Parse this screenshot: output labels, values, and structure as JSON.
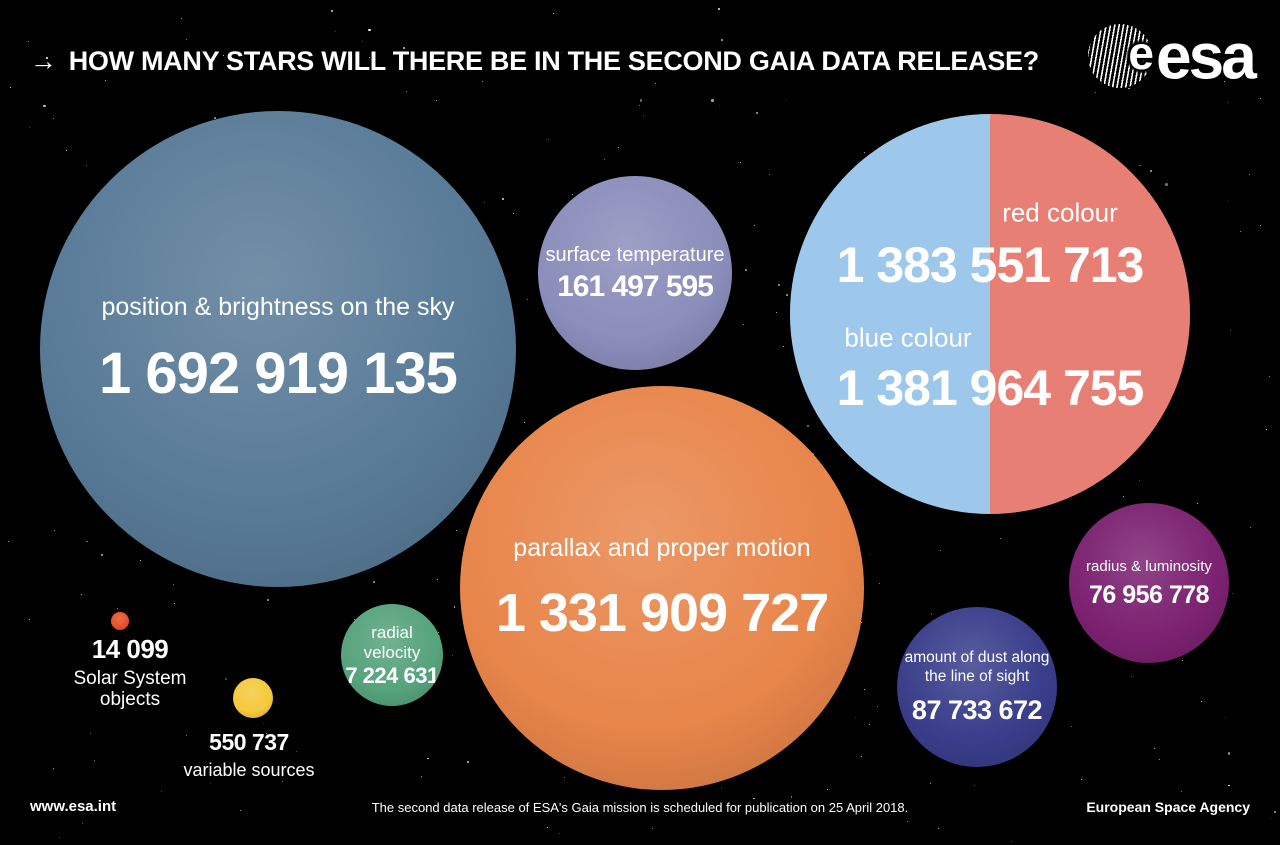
{
  "header": {
    "arrow": "→",
    "title": "HOW MANY STARS WILL THERE BE IN THE SECOND GAIA DATA RELEASE?"
  },
  "logo": {
    "globe_letter": "e",
    "wordmark": "esa"
  },
  "bubbles": {
    "position_brightness": {
      "label": "position & brightness on the sky",
      "value": "1 692 919 135",
      "color": "#587a97"
    },
    "surface_temperature": {
      "label": "surface temperature",
      "value": "161 497 595",
      "color": "#8b8dbb"
    },
    "colour": {
      "red_label": "red colour",
      "red_value": "1 383 551 713",
      "red_color": "#e87f75",
      "blue_label": "blue colour",
      "blue_value": "1 381 964 755",
      "blue_color": "#9dc8eb"
    },
    "parallax": {
      "label": "parallax and proper motion",
      "value": "1 331 909 727",
      "color": "#e8854a"
    },
    "radial_velocity": {
      "label": "radial velocity",
      "value": "7 224 631",
      "color": "#56a37c"
    },
    "solar_system": {
      "value": "14 099",
      "label_line1": "Solar System",
      "label_line2": "objects",
      "color": "#e8512c"
    },
    "variable_sources": {
      "value": "550 737",
      "label": "variable sources",
      "color": "#f6c93d"
    },
    "dust": {
      "label_line1": "amount of dust along",
      "label_line2": "the line of sight",
      "value": "87 733 672",
      "color": "#393d8a"
    },
    "radius_luminosity": {
      "label": "radius & luminosity",
      "value": "76 956 778",
      "color": "#7b2170"
    }
  },
  "footer": {
    "left": "www.esa.int",
    "center": "The second data release of ESA's Gaia mission is scheduled for publication on 25 April 2018.",
    "right": "European Space Agency"
  },
  "chart_data": {
    "type": "bubble",
    "title": "How many stars will there be in the second Gaia data release?",
    "sizing": "bubble area proportional to number of sources",
    "legend_position": "none",
    "items": [
      {
        "label": "position & brightness on the sky",
        "value": 1692919135,
        "display": "1 692 919 135",
        "color": "#587a97"
      },
      {
        "label": "surface temperature",
        "value": 161497595,
        "display": "161 497 595",
        "color": "#8b8dbb"
      },
      {
        "label": "red colour",
        "value": 1383551713,
        "display": "1 383 551 713",
        "color": "#e87f75"
      },
      {
        "label": "blue colour",
        "value": 1381964755,
        "display": "1 381 964 755",
        "color": "#9dc8eb"
      },
      {
        "label": "parallax and proper motion",
        "value": 1331909727,
        "display": "1 331 909 727",
        "color": "#e8854a"
      },
      {
        "label": "radial velocity",
        "value": 7224631,
        "display": "7 224 631",
        "color": "#56a37c"
      },
      {
        "label": "Solar System objects",
        "value": 14099,
        "display": "14 099",
        "color": "#e8512c"
      },
      {
        "label": "variable sources",
        "value": 550737,
        "display": "550 737",
        "color": "#f6c93d"
      },
      {
        "label": "amount of dust along the line of sight",
        "value": 87733672,
        "display": "87 733 672",
        "color": "#393d8a"
      },
      {
        "label": "radius & luminosity",
        "value": 76956778,
        "display": "76 956 778",
        "color": "#7b2170"
      }
    ]
  }
}
